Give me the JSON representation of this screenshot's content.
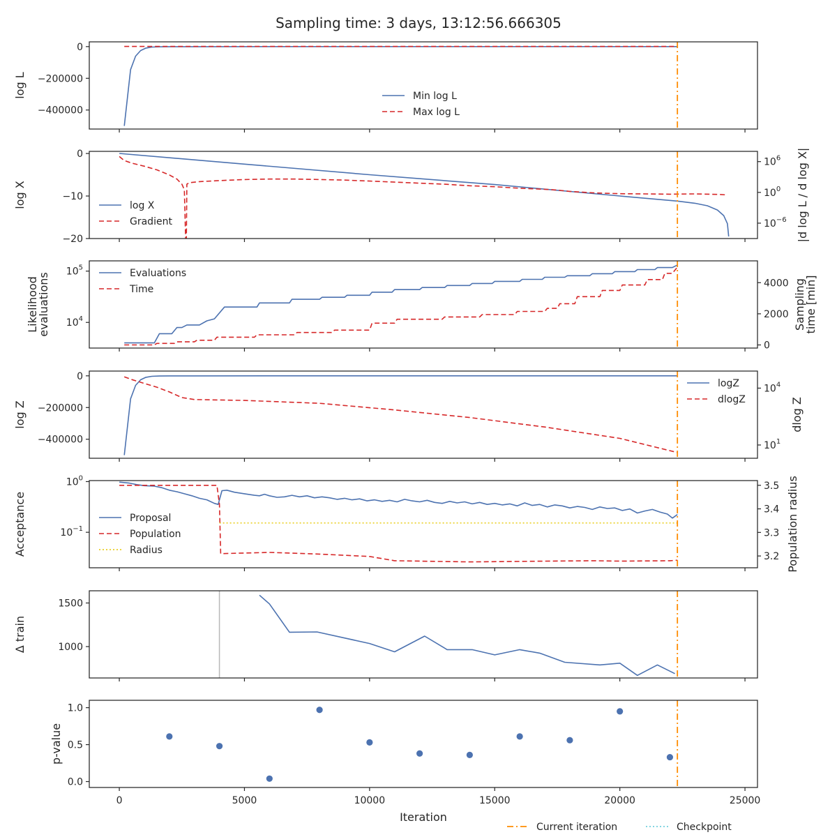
{
  "title": "Sampling time: 3 days, 13:12:56.666305",
  "colors": {
    "blue": "#4c72b0",
    "red": "#d62728",
    "orange": "#ff8c00",
    "yellow": "#e6c700",
    "cyan": "#5bc8d8",
    "grey": "#b8b8b8",
    "axis": "#262626"
  },
  "x_axis": {
    "label": "Iteration",
    "ticks": [
      0,
      5000,
      10000,
      15000,
      20000,
      25000
    ],
    "tick_labels": [
      "0",
      "5000",
      "10000",
      "15000",
      "20000",
      "25000"
    ],
    "xlim": [
      -1200,
      25500
    ]
  },
  "current_iteration": 22300,
  "bottom_legend": [
    "Current iteration",
    "Checkpoint"
  ],
  "chart_data": [
    {
      "id": "logl",
      "type": "line",
      "ylabel": "log L",
      "ylim": [
        -520000,
        30000
      ],
      "yticks": [
        0,
        -200000,
        -400000
      ],
      "ytick_labels": [
        "0",
        "−200000",
        "−400000"
      ],
      "legend": "bottom-center",
      "series": [
        {
          "name": "Min log L",
          "style": "solid",
          "color": "blue",
          "x": [
            200,
            450,
            650,
            850,
            1050,
            1300,
            1600,
            2000,
            3000,
            6000,
            10000,
            15000,
            22300
          ],
          "y": [
            -500000,
            -145000,
            -60000,
            -25000,
            -10000,
            -3000,
            -1200,
            -500,
            -200,
            -100,
            -60,
            -40,
            -30
          ]
        },
        {
          "name": "Max log L",
          "style": "dashed",
          "color": "red",
          "x": [
            200,
            22300
          ],
          "y": [
            1000,
            1000
          ]
        }
      ]
    },
    {
      "id": "logx",
      "type": "line",
      "ylabel": "log X",
      "ylim": [
        -20,
        0.5
      ],
      "yticks": [
        0,
        -10,
        -20
      ],
      "ytick_labels": [
        "0",
        "−10",
        "−20"
      ],
      "y2label": "|d log L / d log X|",
      "y2log": true,
      "y2lim": [
        -9,
        8
      ],
      "y2ticks": [
        6,
        0,
        -6
      ],
      "y2tick_labels": [
        "10^6",
        "10^0",
        "10^−6"
      ],
      "legend": "lower-left",
      "series": [
        {
          "name": "log X",
          "style": "solid",
          "color": "blue",
          "axis": "left",
          "x": [
            0,
            5000,
            10000,
            15000,
            20000,
            22300,
            23000,
            23500,
            23900,
            24150,
            24300,
            24350
          ],
          "y": [
            0,
            -2.5,
            -5.0,
            -7.3,
            -10.0,
            -11.2,
            -11.7,
            -12.3,
            -13.3,
            -14.6,
            -16.5,
            -19.5
          ]
        },
        {
          "name": "Gradient",
          "style": "dashed",
          "color": "red",
          "axis": "right",
          "x": [
            0,
            200,
            500,
            1000,
            1500,
            2000,
            2300,
            2500,
            2600,
            2650,
            2680,
            2700,
            2800,
            3200,
            4000,
            5000,
            6000,
            7000,
            8000,
            9000,
            10000,
            11000,
            12000,
            13000,
            14000,
            15000,
            16000,
            17000,
            17500,
            18000,
            19000,
            20000,
            21000,
            22000,
            23000,
            24000,
            24300
          ],
          "y": [
            7.0,
            6.2,
            5.7,
            5.1,
            4.4,
            3.4,
            2.6,
            1.6,
            0.5,
            -9.0,
            -9.0,
            1.6,
            1.9,
            2.1,
            2.3,
            2.5,
            2.6,
            2.6,
            2.5,
            2.4,
            2.2,
            2.0,
            1.8,
            1.6,
            1.3,
            1.1,
            0.8,
            0.6,
            0.45,
            0.2,
            -0.1,
            -0.25,
            -0.3,
            -0.35,
            -0.3,
            -0.4,
            -0.5
          ]
        }
      ]
    },
    {
      "id": "evals",
      "type": "line",
      "ylabel": "Likelihood evaluations",
      "ylog": true,
      "ylim": [
        3.5,
        5.2
      ],
      "yticks": [
        4,
        5
      ],
      "ytick_labels": [
        "10^4",
        "10^5"
      ],
      "y2label": "Sampling time [min]",
      "y2lim": [
        -200,
        5400
      ],
      "y2ticks": [
        0,
        2000,
        4000
      ],
      "y2tick_labels": [
        "0",
        "2000",
        "4000"
      ],
      "legend": "upper-left",
      "series": [
        {
          "name": "Evaluations",
          "style": "solid",
          "color": "blue",
          "axis": "left",
          "x": [
            200,
            1400,
            1600,
            2100,
            2300,
            2500,
            2700,
            3200,
            3500,
            3800,
            4200,
            5500,
            5600,
            6800,
            6900,
            8000,
            8100,
            9000,
            9100,
            10000,
            10100,
            10900,
            11000,
            12000,
            12100,
            13000,
            13100,
            14000,
            14100,
            14900,
            15000,
            16000,
            16100,
            16900,
            17000,
            17800,
            17900,
            18800,
            18900,
            19700,
            19800,
            20600,
            20700,
            21400,
            21500,
            22100,
            22300
          ],
          "y": [
            3.6,
            3.6,
            3.78,
            3.78,
            3.9,
            3.9,
            3.95,
            3.95,
            4.03,
            4.07,
            4.3,
            4.3,
            4.38,
            4.38,
            4.45,
            4.45,
            4.49,
            4.49,
            4.53,
            4.53,
            4.59,
            4.59,
            4.64,
            4.64,
            4.68,
            4.68,
            4.72,
            4.72,
            4.76,
            4.76,
            4.8,
            4.8,
            4.84,
            4.84,
            4.88,
            4.88,
            4.91,
            4.91,
            4.95,
            4.95,
            4.99,
            4.99,
            5.03,
            5.03,
            5.07,
            5.07,
            5.12
          ]
        },
        {
          "name": "Time",
          "style": "dashed",
          "color": "red",
          "axis": "right",
          "x": [
            200,
            1400,
            1500,
            2200,
            2300,
            3000,
            3100,
            3800,
            3900,
            5400,
            5500,
            7000,
            7100,
            8500,
            8600,
            10000,
            10100,
            11000,
            11100,
            12900,
            13000,
            14400,
            14500,
            15800,
            15900,
            17000,
            17100,
            17500,
            17600,
            18200,
            18300,
            19200,
            19300,
            20000,
            20100,
            21000,
            21100,
            21700,
            21800,
            22100,
            22300
          ],
          "y": [
            0,
            0,
            100,
            100,
            200,
            200,
            300,
            300,
            500,
            500,
            650,
            650,
            800,
            800,
            950,
            950,
            1400,
            1400,
            1650,
            1650,
            1800,
            1800,
            1950,
            1950,
            2150,
            2150,
            2350,
            2350,
            2650,
            2650,
            3100,
            3100,
            3500,
            3500,
            3850,
            3850,
            4200,
            4200,
            4600,
            4600,
            5000
          ]
        }
      ]
    },
    {
      "id": "logz",
      "type": "line",
      "ylabel": "log Z",
      "ylim": [
        -520000,
        30000
      ],
      "yticks": [
        0,
        -200000,
        -400000
      ],
      "ytick_labels": [
        "0",
        "−200000",
        "−400000"
      ],
      "y2label": "dlog Z",
      "y2log": true,
      "y2lim": [
        0.3,
        4.9
      ],
      "y2ticks": [
        4,
        1
      ],
      "y2tick_labels": [
        "10^4",
        "10^1"
      ],
      "legend": "upper-right",
      "series": [
        {
          "name": "logZ",
          "style": "solid",
          "color": "blue",
          "axis": "left",
          "x": [
            200,
            450,
            650,
            850,
            1050,
            1300,
            1600,
            2000,
            3000,
            6000,
            10000,
            15000,
            22300
          ],
          "y": [
            -500000,
            -145000,
            -60000,
            -25000,
            -10000,
            -3000,
            -1200,
            -500,
            -200,
            -100,
            -60,
            -40,
            -30
          ]
        },
        {
          "name": "dlogZ",
          "style": "dashed",
          "color": "red",
          "axis": "right",
          "x": [
            200,
            500,
            1000,
            1500,
            2000,
            2500,
            3000,
            5000,
            8000,
            11000,
            14000,
            17000,
            20000,
            22300
          ],
          "y": [
            4.6,
            4.45,
            4.25,
            4.05,
            3.8,
            3.5,
            3.4,
            3.35,
            3.2,
            2.85,
            2.45,
            1.95,
            1.35,
            0.6
          ]
        }
      ]
    },
    {
      "id": "accept",
      "type": "line",
      "ylabel": "Acceptance",
      "ylog": true,
      "ylim": [
        -1.7,
        0.02
      ],
      "yticks": [
        0,
        -1
      ],
      "ytick_labels": [
        "10^0",
        "10^−1"
      ],
      "y2label": "Population radius",
      "y2lim": [
        3.15,
        3.52
      ],
      "y2ticks": [
        3.2,
        3.3,
        3.4,
        3.5
      ],
      "y2tick_labels": [
        "3.2",
        "3.3",
        "3.4",
        "3.5"
      ],
      "legend": "lower-left",
      "series": [
        {
          "name": "Proposal",
          "style": "solid",
          "color": "blue",
          "axis": "left",
          "x": [
            0,
            400,
            700,
            1000,
            1400,
            1700,
            2000,
            2300,
            2600,
            2900,
            3200,
            3500,
            3800,
            3950,
            4100,
            4300,
            4600,
            5000,
            5400,
            5600,
            5800,
            6000,
            6300,
            6600,
            6900,
            7200,
            7500,
            7800,
            8100,
            8400,
            8700,
            9000,
            9300,
            9600,
            9900,
            10200,
            10500,
            10800,
            11100,
            11400,
            11700,
            12000,
            12300,
            12600,
            12900,
            13200,
            13500,
            13800,
            14100,
            14400,
            14700,
            15000,
            15300,
            15600,
            15900,
            16200,
            16500,
            16800,
            17100,
            17400,
            17700,
            18000,
            18300,
            18600,
            18900,
            19200,
            19500,
            19800,
            20100,
            20400,
            20700,
            21000,
            21300,
            21600,
            21900,
            22100,
            22300
          ],
          "y": [
            -0.01,
            -0.03,
            -0.06,
            -0.08,
            -0.09,
            -0.12,
            -0.17,
            -0.2,
            -0.24,
            -0.28,
            -0.33,
            -0.36,
            -0.43,
            -0.45,
            -0.18,
            -0.17,
            -0.21,
            -0.24,
            -0.27,
            -0.28,
            -0.25,
            -0.28,
            -0.31,
            -0.3,
            -0.27,
            -0.3,
            -0.28,
            -0.32,
            -0.3,
            -0.32,
            -0.35,
            -0.33,
            -0.36,
            -0.34,
            -0.38,
            -0.36,
            -0.39,
            -0.37,
            -0.4,
            -0.35,
            -0.38,
            -0.4,
            -0.37,
            -0.41,
            -0.43,
            -0.39,
            -0.42,
            -0.4,
            -0.44,
            -0.41,
            -0.45,
            -0.43,
            -0.46,
            -0.44,
            -0.48,
            -0.42,
            -0.47,
            -0.45,
            -0.5,
            -0.46,
            -0.48,
            -0.52,
            -0.49,
            -0.51,
            -0.55,
            -0.5,
            -0.53,
            -0.52,
            -0.57,
            -0.54,
            -0.62,
            -0.58,
            -0.55,
            -0.6,
            -0.64,
            -0.72,
            -0.65
          ]
        },
        {
          "name": "Population",
          "style": "dashed",
          "color": "red",
          "axis": "right",
          "x": [
            0,
            3900,
            4000,
            4050,
            4100,
            6000,
            8000,
            10000,
            11000,
            14000,
            17000,
            19000,
            20000,
            22000,
            22300
          ],
          "y": [
            3.5,
            3.5,
            3.42,
            3.21,
            3.21,
            3.215,
            3.208,
            3.198,
            3.18,
            3.175,
            3.178,
            3.18,
            3.178,
            3.18,
            3.182
          ]
        },
        {
          "name": "Radius",
          "style": "dotted",
          "color": "yellow",
          "axis": "right",
          "x": [
            4000,
            22300
          ],
          "y": [
            3.34,
            3.34
          ]
        }
      ]
    },
    {
      "id": "dtrain",
      "type": "line",
      "ylabel": "Δ train",
      "ylim": [
        640,
        1640
      ],
      "yticks": [
        1500,
        1000
      ],
      "ytick_labels": [
        "1500",
        "1000"
      ],
      "checkpoint_x": 4000,
      "series": [
        {
          "name": "",
          "style": "solid",
          "color": "blue",
          "x": [
            5600,
            6000,
            6800,
            7900,
            10000,
            11000,
            12200,
            13100,
            14100,
            15000,
            16000,
            16800,
            17800,
            19200,
            20000,
            20700,
            21500,
            22200
          ],
          "y": [
            1590,
            1490,
            1165,
            1168,
            1035,
            940,
            1120,
            965,
            965,
            905,
            965,
            925,
            820,
            790,
            810,
            670,
            790,
            690
          ]
        }
      ]
    },
    {
      "id": "pvalue",
      "type": "scatter",
      "ylabel": "p-value",
      "ylim": [
        -0.08,
        1.1
      ],
      "yticks": [
        1.0,
        0.5,
        0.0
      ],
      "ytick_labels": [
        "1.0",
        "0.5",
        "0.0"
      ],
      "series": [
        {
          "name": "",
          "color": "blue",
          "x": [
            2000,
            4000,
            6000,
            8000,
            10000,
            12000,
            14000,
            16000,
            18000,
            20000,
            22000
          ],
          "y": [
            0.61,
            0.48,
            0.04,
            0.97,
            0.53,
            0.38,
            0.36,
            0.61,
            0.56,
            0.95,
            0.33
          ]
        }
      ]
    }
  ]
}
